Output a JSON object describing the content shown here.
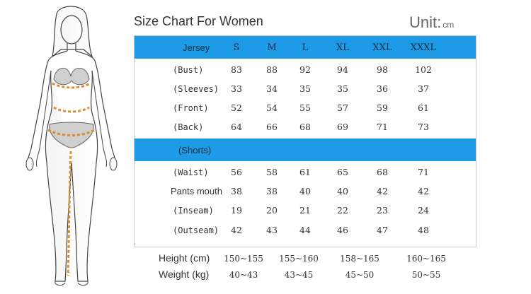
{
  "title": "Size Chart For Women",
  "unit": {
    "label": "Unit:",
    "value": "cm"
  },
  "jersey": {
    "header": "Jersey",
    "sizes": [
      "S",
      "M",
      "L",
      "XL",
      "XXL",
      "XXXL"
    ],
    "rows": [
      {
        "label": "(Bust)",
        "values": [
          "83",
          "88",
          "92",
          "94",
          "98",
          "102"
        ]
      },
      {
        "label": "(Sleeves)",
        "values": [
          "33",
          "34",
          "35",
          "35",
          "36",
          "37"
        ]
      },
      {
        "label": "(Front)",
        "values": [
          "52",
          "54",
          "55",
          "57",
          "59",
          "61"
        ]
      },
      {
        "label": "(Back)",
        "values": [
          "64",
          "66",
          "68",
          "69",
          "71",
          "73"
        ]
      }
    ]
  },
  "shorts": {
    "header": "(Shorts)",
    "rows": [
      {
        "label": "(Waist)",
        "values": [
          "56",
          "58",
          "61",
          "65",
          "68",
          "71"
        ]
      },
      {
        "label": "Pants mouth",
        "values": [
          "38",
          "38",
          "40",
          "40",
          "42",
          "42"
        ]
      },
      {
        "label": "(Inseam)",
        "values": [
          "19",
          "20",
          "21",
          "22",
          "23",
          "24"
        ]
      },
      {
        "label": "(Outseam)",
        "values": [
          "42",
          "43",
          "44",
          "46",
          "47",
          "48"
        ]
      }
    ]
  },
  "height": {
    "label": "Height (cm)",
    "values": [
      "150~155",
      "155~160",
      "158~165",
      "160~165"
    ]
  },
  "weight": {
    "label": "Weight (kg)",
    "values": [
      "40~43",
      "43~45",
      "45~50",
      "50~55"
    ]
  },
  "colors": {
    "band": "#1d9be6",
    "measure": "#e08a2a"
  }
}
